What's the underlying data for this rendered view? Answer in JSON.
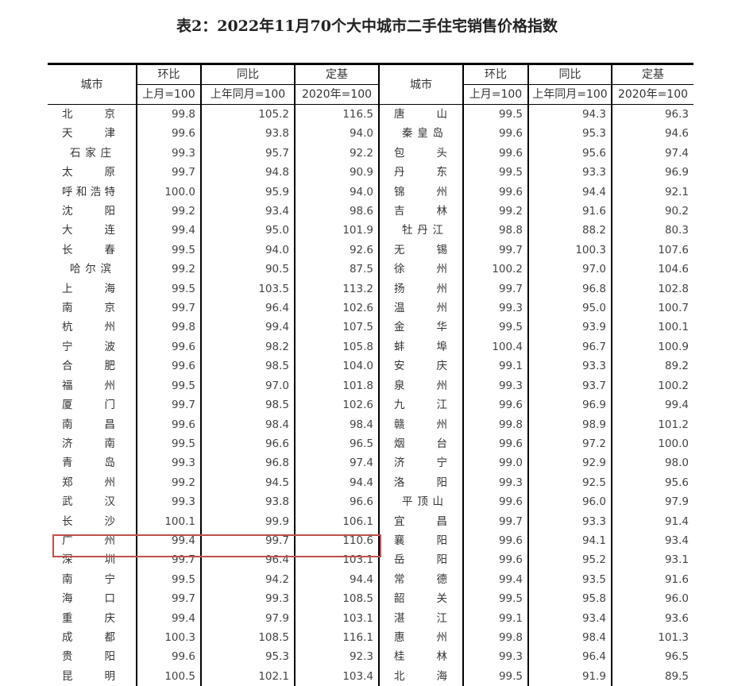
{
  "title": "表2：2022年11月70个大中城市二手住宅销售价格指数",
  "header": {
    "city": "城市",
    "mom": "环比",
    "yoy": "同比",
    "base": "定基",
    "mom_sub": "上月=100",
    "yoy_sub": "上年同月=100",
    "base_sub": "2020年=100"
  },
  "highlight_color": "#c0504d",
  "highlighted_city": "深圳",
  "rows": [
    {
      "left": [
        "北京",
        "99.8",
        "105.2",
        "116.5"
      ],
      "right": [
        "唐山",
        "99.5",
        "94.3",
        "96.3"
      ]
    },
    {
      "left": [
        "天津",
        "99.6",
        "93.8",
        "94.0"
      ],
      "right": [
        "秦皇岛",
        "99.6",
        "95.3",
        "94.6"
      ]
    },
    {
      "left": [
        "石家庄",
        "99.3",
        "95.7",
        "92.2"
      ],
      "right": [
        "包头",
        "99.6",
        "95.6",
        "97.4"
      ]
    },
    {
      "left": [
        "太原",
        "99.7",
        "94.8",
        "90.9"
      ],
      "right": [
        "丹东",
        "99.5",
        "93.3",
        "96.9"
      ]
    },
    {
      "left": [
        "呼和浩特",
        "100.0",
        "95.9",
        "94.0"
      ],
      "right": [
        "锦州",
        "99.6",
        "94.4",
        "92.1"
      ]
    },
    {
      "left": [
        "沈阳",
        "99.2",
        "93.4",
        "98.6"
      ],
      "right": [
        "吉林",
        "99.2",
        "91.6",
        "90.2"
      ]
    },
    {
      "left": [
        "大连",
        "99.4",
        "95.0",
        "101.9"
      ],
      "right": [
        "牡丹江",
        "98.8",
        "88.2",
        "80.3"
      ]
    },
    {
      "left": [
        "长春",
        "99.5",
        "94.0",
        "92.6"
      ],
      "right": [
        "无锡",
        "99.7",
        "100.3",
        "107.6"
      ]
    },
    {
      "left": [
        "哈尔滨",
        "99.2",
        "90.5",
        "87.5"
      ],
      "right": [
        "徐州",
        "100.2",
        "97.0",
        "104.6"
      ]
    },
    {
      "left": [
        "上海",
        "99.5",
        "103.5",
        "113.2"
      ],
      "right": [
        "扬州",
        "99.7",
        "96.8",
        "102.8"
      ]
    },
    {
      "left": [
        "南京",
        "99.7",
        "96.4",
        "102.6"
      ],
      "right": [
        "温州",
        "99.3",
        "95.0",
        "100.7"
      ]
    },
    {
      "left": [
        "杭州",
        "99.8",
        "99.4",
        "107.5"
      ],
      "right": [
        "金华",
        "99.5",
        "93.9",
        "100.1"
      ]
    },
    {
      "left": [
        "宁波",
        "99.6",
        "98.2",
        "105.8"
      ],
      "right": [
        "蚌埠",
        "100.4",
        "96.7",
        "100.9"
      ]
    },
    {
      "left": [
        "合肥",
        "99.6",
        "98.5",
        "104.0"
      ],
      "right": [
        "安庆",
        "99.1",
        "93.3",
        "89.2"
      ]
    },
    {
      "left": [
        "福州",
        "99.5",
        "97.0",
        "101.8"
      ],
      "right": [
        "泉州",
        "99.3",
        "93.7",
        "100.2"
      ]
    },
    {
      "left": [
        "厦门",
        "99.7",
        "98.5",
        "102.6"
      ],
      "right": [
        "九江",
        "99.6",
        "96.9",
        "99.4"
      ]
    },
    {
      "left": [
        "南昌",
        "99.6",
        "98.4",
        "98.4"
      ],
      "right": [
        "赣州",
        "99.8",
        "98.9",
        "101.2"
      ]
    },
    {
      "left": [
        "济南",
        "99.5",
        "96.6",
        "96.5"
      ],
      "right": [
        "烟台",
        "99.6",
        "97.2",
        "100.0"
      ]
    },
    {
      "left": [
        "青岛",
        "99.3",
        "96.8",
        "97.4"
      ],
      "right": [
        "济宁",
        "99.0",
        "92.9",
        "98.0"
      ]
    },
    {
      "left": [
        "郑州",
        "99.2",
        "94.5",
        "94.4"
      ],
      "right": [
        "洛阳",
        "99.3",
        "92.5",
        "95.6"
      ]
    },
    {
      "left": [
        "武汉",
        "99.3",
        "93.8",
        "96.6"
      ],
      "right": [
        "平顶山",
        "99.6",
        "96.0",
        "97.9"
      ]
    },
    {
      "left": [
        "长沙",
        "100.1",
        "99.9",
        "106.1"
      ],
      "right": [
        "宜昌",
        "99.7",
        "93.3",
        "91.4"
      ]
    },
    {
      "left": [
        "广州",
        "99.4",
        "99.7",
        "110.6"
      ],
      "right": [
        "襄阳",
        "99.6",
        "94.1",
        "93.4"
      ]
    },
    {
      "left": [
        "深圳",
        "99.7",
        "96.4",
        "103.1"
      ],
      "right": [
        "岳阳",
        "99.6",
        "95.2",
        "93.1"
      ]
    },
    {
      "left": [
        "南宁",
        "99.5",
        "94.2",
        "94.4"
      ],
      "right": [
        "常德",
        "99.4",
        "93.5",
        "91.6"
      ]
    },
    {
      "left": [
        "海口",
        "99.7",
        "99.3",
        "108.5"
      ],
      "right": [
        "韶关",
        "99.5",
        "95.8",
        "96.0"
      ]
    },
    {
      "left": [
        "重庆",
        "99.4",
        "97.9",
        "103.1"
      ],
      "right": [
        "湛江",
        "99.1",
        "93.4",
        "93.6"
      ]
    },
    {
      "left": [
        "成都",
        "100.3",
        "108.5",
        "116.1"
      ],
      "right": [
        "惠州",
        "99.8",
        "98.4",
        "101.3"
      ]
    },
    {
      "left": [
        "贵阳",
        "99.6",
        "95.3",
        "92.3"
      ],
      "right": [
        "桂林",
        "99.3",
        "96.4",
        "96.5"
      ]
    },
    {
      "left": [
        "昆明",
        "100.5",
        "102.1",
        "103.4"
      ],
      "right": [
        "北海",
        "99.5",
        "91.9",
        "89.5"
      ]
    }
  ]
}
